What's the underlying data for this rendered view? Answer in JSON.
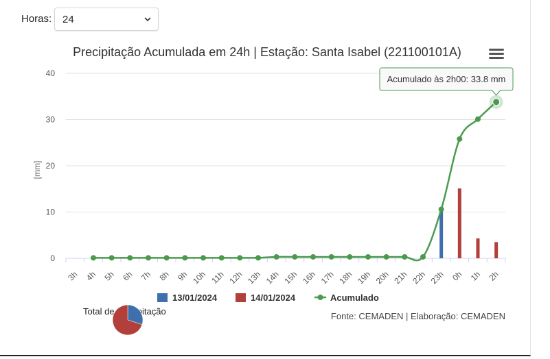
{
  "controls": {
    "hours_label": "Horas:",
    "hours_value": "24"
  },
  "chart_data": {
    "type": "bar",
    "title": "Precipitação Acumulada em 24h | Estação: Santa Isabel (221100101A)",
    "ylabel": "[mm]",
    "ylim": [
      0,
      40
    ],
    "yticks": [
      0,
      10,
      20,
      30,
      40
    ],
    "categories": [
      "3h",
      "4h",
      "5h",
      "6h",
      "7h",
      "8h",
      "9h",
      "10h",
      "11h",
      "12h",
      "13h",
      "14h",
      "15h",
      "16h",
      "17h",
      "18h",
      "19h",
      "20h",
      "21h",
      "22h",
      "23h",
      "0h",
      "1h",
      "2h"
    ],
    "series": [
      {
        "name": "13/01/2024",
        "type": "bar",
        "color": "#3f6fad",
        "values": [
          null,
          0,
          0,
          0,
          0,
          0,
          0,
          0,
          0,
          0,
          0,
          0,
          0,
          0,
          0,
          0,
          0,
          0,
          0,
          0,
          10.2,
          null,
          null,
          null
        ]
      },
      {
        "name": "14/01/2024",
        "type": "bar",
        "color": "#b33f3b",
        "values": [
          null,
          null,
          null,
          null,
          null,
          null,
          null,
          null,
          null,
          null,
          null,
          null,
          null,
          null,
          null,
          null,
          null,
          null,
          null,
          null,
          null,
          15.1,
          4.3,
          3.5
        ]
      },
      {
        "name": "Acumulado",
        "type": "line",
        "color": "#4a9a4e",
        "values": [
          null,
          0.1,
          0.1,
          0.1,
          0.1,
          0.1,
          0.1,
          0.1,
          0.1,
          0.1,
          0.1,
          0.3,
          0.3,
          0.3,
          0.3,
          0.3,
          0.3,
          0.3,
          0.3,
          0.3,
          10.6,
          25.8,
          30.1,
          33.8
        ]
      }
    ],
    "tooltip": "Acumulado às 2h00: 33.8 mm",
    "legend_position": "bottom",
    "credits": "Fonte: CEMADEN | Elaboração: CEMADEN",
    "grid": true
  },
  "pie": {
    "label": "Total de Precipitação",
    "slices": [
      {
        "value": 30,
        "color": "#3f6fad"
      },
      {
        "value": 70,
        "color": "#b33f3b"
      }
    ]
  }
}
